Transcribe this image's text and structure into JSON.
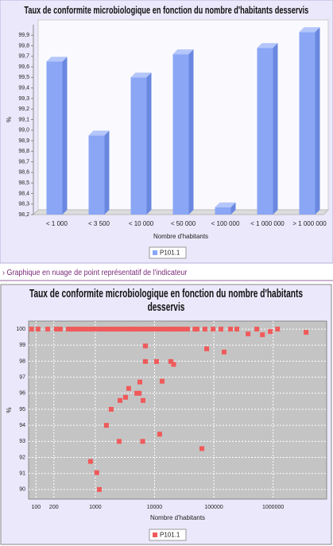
{
  "chart_data": [
    {
      "type": "bar",
      "title": "Taux de conformite microbiologique en fonction du nombre d'habitants desservis",
      "x_label": "Nombre d'habitants",
      "y_label": "%",
      "categories": [
        "< 1 000",
        "< 3 500",
        "< 10 000",
        "< 50 000",
        "< 100 000",
        "< 1 000 000",
        "> 1 000 000"
      ],
      "series": [
        {
          "name": "P101.1",
          "color": "#8aa6f5",
          "values": [
            99.65,
            98.95,
            99.5,
            99.72,
            98.27,
            99.78,
            99.93
          ]
        }
      ],
      "ylim": [
        98.2,
        100.0
      ],
      "yticks": [
        {
          "value": 98.2,
          "label": "98,2"
        },
        {
          "value": 98.3,
          "label": "98,3"
        },
        {
          "value": 98.4,
          "label": "98,4"
        },
        {
          "value": 98.5,
          "label": "98,5"
        },
        {
          "value": 98.6,
          "label": "98,6"
        },
        {
          "value": 98.7,
          "label": "98,7"
        },
        {
          "value": 98.8,
          "label": "98,8"
        },
        {
          "value": 98.9,
          "label": "98,9"
        },
        {
          "value": 99.0,
          "label": "99,0"
        },
        {
          "value": 99.1,
          "label": "99,1"
        },
        {
          "value": 99.2,
          "label": "99,2"
        },
        {
          "value": 99.3,
          "label": "99,3"
        },
        {
          "value": 99.4,
          "label": "99,4"
        },
        {
          "value": 99.5,
          "label": "99,5"
        },
        {
          "value": 99.6,
          "label": "99,6"
        },
        {
          "value": 99.7,
          "label": "99,7"
        },
        {
          "value": 99.8,
          "label": "99,8"
        },
        {
          "value": 99.9,
          "label": "99,9"
        }
      ],
      "grid": false
    },
    {
      "type": "scatter",
      "title": "Taux de conformite microbiologique en fonction du nombre d'habitants desservis",
      "x_label": "Nombre d'habitants",
      "y_label": "%",
      "x_scale": "log",
      "series": [
        {
          "name": "P101.1",
          "color": "#f05a5a",
          "x": [
            84,
            108,
            157,
            220,
            257,
            350,
            400,
            450,
            500,
            600,
            700,
            800,
            900,
            1000,
            1200,
            1400,
            1600,
            1800,
            2000,
            2300,
            2600,
            3000,
            3500,
            4000,
            4500,
            5000,
            6000,
            7000,
            8000,
            9000,
            10000,
            12000,
            14000,
            16000,
            18000,
            20000,
            23000,
            26000,
            30000,
            36000,
            48000,
            52000,
            71000,
            97000,
            132000,
            191000,
            245000,
            531000,
            1190000,
            378000,
            660000,
            897000,
            3600000,
            7000,
            75700,
            149000,
            7000,
            10800,
            18800,
            21000,
            13400,
            5650,
            5000,
            5500,
            3660,
            3240,
            2610,
            6390,
            1850,
            1540,
            12200,
            2530,
            6300,
            62900,
            830,
            1060,
            1170
          ],
          "values": [
            100,
            100,
            100,
            100,
            100,
            100,
            100,
            100,
            100,
            100,
            100,
            100,
            100,
            100,
            100,
            100,
            100,
            100,
            100,
            100,
            100,
            100,
            100,
            100,
            100,
            100,
            100,
            100,
            100,
            100,
            100,
            100,
            100,
            100,
            100,
            100,
            100,
            100,
            100,
            100,
            100,
            100,
            100,
            100,
            100,
            100,
            100,
            100,
            100,
            99.7,
            99.65,
            99.85,
            99.8,
            98.95,
            98.77,
            98.57,
            97.98,
            97.98,
            97.98,
            97.8,
            96.75,
            96.7,
            96.0,
            96.0,
            96.3,
            95.75,
            95.55,
            95.55,
            95.0,
            94.0,
            93.45,
            93.0,
            93.0,
            92.55,
            91.75,
            91.05,
            90.0
          ]
        }
      ],
      "xlim": [
        75,
        8000000
      ],
      "xticks": [
        100,
        200,
        1000,
        10000,
        100000,
        1000000
      ],
      "ylim": [
        89.4,
        100.5
      ],
      "yticks": [
        90,
        91,
        92,
        93,
        94,
        95,
        96,
        97,
        98,
        99,
        100
      ],
      "grid": true
    }
  ],
  "section_heading": "› Graphique en nuage de point représentatif de l'indicateur"
}
